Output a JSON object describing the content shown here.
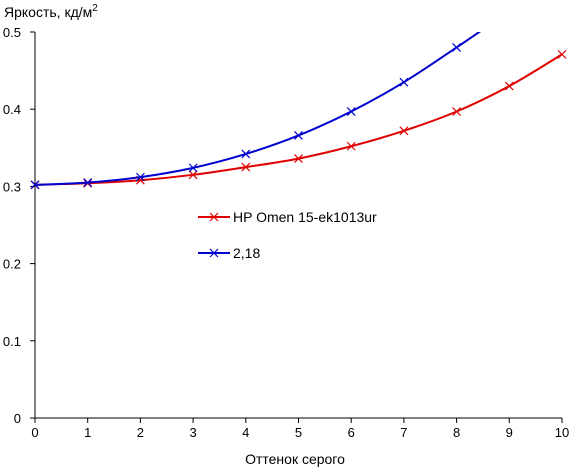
{
  "chart_data": {
    "type": "line",
    "ylabel": "Яркость, кд/м",
    "ylabel_sup": "2",
    "xlabel": "Оттенок серого",
    "xlim": [
      0,
      10
    ],
    "ylim": [
      0,
      0.5
    ],
    "x_ticks": [
      "0",
      "1",
      "2",
      "3",
      "4",
      "5",
      "6",
      "7",
      "8",
      "9",
      "10"
    ],
    "y_ticks": [
      "0",
      "0.1",
      "0.2",
      "0.3",
      "0.4",
      "0.5"
    ],
    "grid": false,
    "legend_position": "center",
    "series": [
      {
        "name": "HP Omen 15-ek1013ur",
        "color": "#e00000",
        "marker": "x",
        "x": [
          0,
          1,
          2,
          3,
          4,
          5,
          6,
          7,
          8,
          9,
          10
        ],
        "y": [
          0.302,
          0.304,
          0.308,
          0.315,
          0.325,
          0.336,
          0.352,
          0.372,
          0.397,
          0.43,
          0.471
        ]
      },
      {
        "name": "2,18",
        "color": "#0000d0",
        "marker": "x",
        "x": [
          0,
          1,
          2,
          3,
          4,
          5,
          6,
          7,
          8,
          8.6
        ],
        "y": [
          0.302,
          0.305,
          0.312,
          0.324,
          0.342,
          0.366,
          0.397,
          0.435,
          0.48,
          0.508
        ],
        "markers_x": [
          0,
          1,
          2,
          3,
          4,
          5,
          6,
          7,
          8
        ]
      }
    ]
  }
}
